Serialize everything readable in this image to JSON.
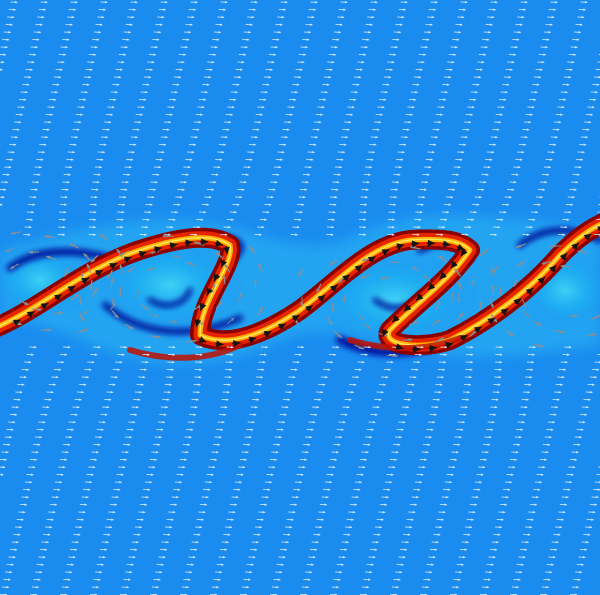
{
  "figure": {
    "kind": "vector-field-visualization",
    "colormap": {
      "background": "#1a8cf0",
      "light": "#3fd3f5",
      "dark": "#00109a",
      "hot": [
        "#7a0000",
        "#d81c00",
        "#ff6a00",
        "#ffd200"
      ]
    },
    "arrow_colors": {
      "background_field": "#d8ecff",
      "shear_layer": "#8a8f95",
      "core": "#141414"
    },
    "icons": [
      "arrow-glyph-icon"
    ]
  }
}
